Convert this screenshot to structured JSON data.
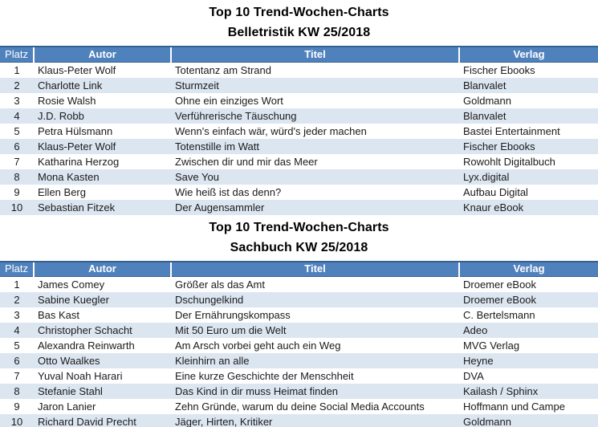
{
  "colors": {
    "header_bg": "#4F81BD",
    "header_border": "#35618F",
    "header_text": "#FFFFFF",
    "band_bg": "#DCE6F1",
    "text": "#1A1A1A",
    "title_text": "#000000",
    "page_bg": "#FFFFFF"
  },
  "tables": [
    {
      "title": "Top 10 Trend-Wochen-Charts",
      "subtitle": "Belletristik KW 25/2018",
      "columns": [
        "Platz",
        "Autor",
        "Titel",
        "Verlag"
      ],
      "rows": [
        {
          "platz": "1",
          "autor": "Klaus-Peter Wolf",
          "titel": "Totentanz am Strand",
          "verlag": "Fischer Ebooks"
        },
        {
          "platz": "2",
          "autor": "Charlotte Link",
          "titel": "Sturmzeit",
          "verlag": "Blanvalet"
        },
        {
          "platz": "3",
          "autor": "Rosie Walsh",
          "titel": "Ohne ein einziges Wort",
          "verlag": "Goldmann"
        },
        {
          "platz": "4",
          "autor": "J.D. Robb",
          "titel": "Verführerische Täuschung",
          "verlag": "Blanvalet"
        },
        {
          "platz": "5",
          "autor": "Petra Hülsmann",
          "titel": "Wenn's einfach wär, würd's jeder machen",
          "verlag": "Bastei Entertainment"
        },
        {
          "platz": "6",
          "autor": "Klaus-Peter Wolf",
          "titel": "Totenstille im Watt",
          "verlag": "Fischer Ebooks"
        },
        {
          "platz": "7",
          "autor": "Katharina Herzog",
          "titel": "Zwischen dir und mir das Meer",
          "verlag": "Rowohlt Digitalbuch"
        },
        {
          "platz": "8",
          "autor": "Mona Kasten",
          "titel": "Save You",
          "verlag": "Lyx.digital"
        },
        {
          "platz": "9",
          "autor": "Ellen Berg",
          "titel": "Wie heiß ist das denn?",
          "verlag": "Aufbau Digital"
        },
        {
          "platz": "10",
          "autor": "Sebastian Fitzek",
          "titel": "Der Augensammler",
          "verlag": "Knaur eBook"
        }
      ]
    },
    {
      "title": "Top 10 Trend-Wochen-Charts",
      "subtitle": "Sachbuch KW 25/2018",
      "columns": [
        "Platz",
        "Autor",
        "Titel",
        "Verlag"
      ],
      "rows": [
        {
          "platz": "1",
          "autor": "James Comey",
          "titel": "Größer als das Amt",
          "verlag": "Droemer eBook"
        },
        {
          "platz": "2",
          "autor": "Sabine Kuegler",
          "titel": "Dschungelkind",
          "verlag": "Droemer eBook"
        },
        {
          "platz": "3",
          "autor": "Bas Kast",
          "titel": "Der Ernährungskompass",
          "verlag": "C. Bertelsmann"
        },
        {
          "platz": "4",
          "autor": "Christopher Schacht",
          "titel": "Mit 50 Euro um die Welt",
          "verlag": "Adeo"
        },
        {
          "platz": "5",
          "autor": "Alexandra Reinwarth",
          "titel": "Am Arsch vorbei geht auch ein Weg",
          "verlag": "MVG Verlag"
        },
        {
          "platz": "6",
          "autor": "Otto Waalkes",
          "titel": "Kleinhirn an alle",
          "verlag": "Heyne"
        },
        {
          "platz": "7",
          "autor": "Yuval Noah Harari",
          "titel": "Eine kurze Geschichte der Menschheit",
          "verlag": "DVA"
        },
        {
          "platz": "8",
          "autor": "Stefanie Stahl",
          "titel": "Das Kind in dir muss Heimat finden",
          "verlag": "Kailash / Sphinx"
        },
        {
          "platz": "9",
          "autor": "Jaron Lanier",
          "titel": "Zehn Gründe, warum du deine Social Media Accounts",
          "verlag": "Hoffmann und Campe"
        },
        {
          "platz": "10",
          "autor": "Richard David Precht",
          "titel": "Jäger, Hirten, Kritiker",
          "verlag": "Goldmann"
        }
      ]
    }
  ]
}
